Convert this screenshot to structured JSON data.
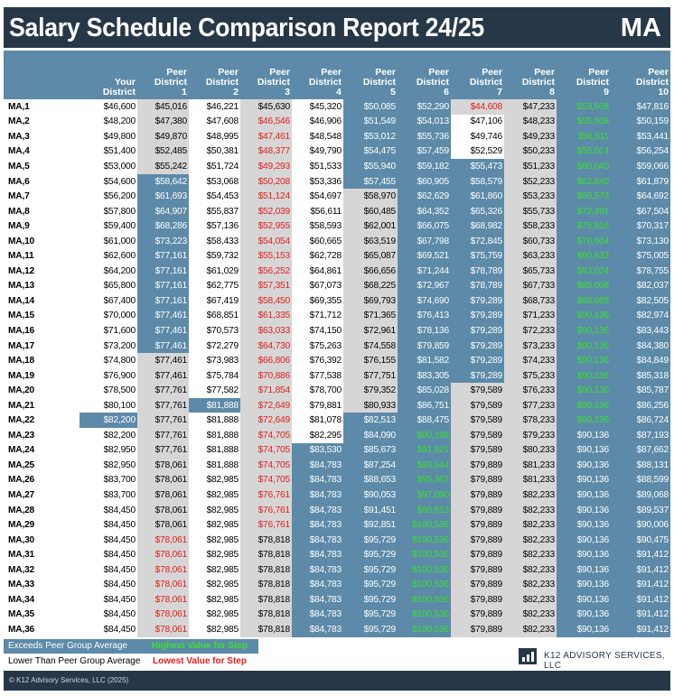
{
  "header": {
    "title": "Salary Schedule Comparison Report 24/25",
    "code": "MA"
  },
  "columns": [
    {
      "line1": "",
      "line2": "Your",
      "line3": "District"
    },
    {
      "line1": "Peer",
      "line2": "District",
      "line3": "1"
    },
    {
      "line1": "Peer",
      "line2": "District",
      "line3": "2"
    },
    {
      "line1": "Peer",
      "line2": "District",
      "line3": "3"
    },
    {
      "line1": "Peer",
      "line2": "District",
      "line3": "4"
    },
    {
      "line1": "Peer",
      "line2": "District",
      "line3": "5"
    },
    {
      "line1": "Peer",
      "line2": "District",
      "line3": "6"
    },
    {
      "line1": "Peer",
      "line2": "District",
      "line3": "7"
    },
    {
      "line1": "Peer",
      "line2": "District",
      "line3": "8"
    },
    {
      "line1": "Peer",
      "line2": "District",
      "line3": "9"
    },
    {
      "line1": "Peer",
      "line2": "District",
      "line3": "10"
    }
  ],
  "style_legend": {
    "p": "plain",
    "g": "gray",
    "b": "exceeds peer group average",
    "G": "highest value for step",
    "r": "lowest value for step"
  },
  "rows": [
    {
      "step": "MA,1",
      "values": [
        "$46,600",
        "$45,016",
        "$46,221",
        "$45,630",
        "$45,320",
        "$50,085",
        "$52,290",
        "$44,608",
        "$47,233",
        "$53,608",
        "$47,816"
      ],
      "styles": "pgpgpbbrgGb"
    },
    {
      "step": "MA,2",
      "values": [
        "$48,200",
        "$47,380",
        "$47,608",
        "$46,546",
        "$46,906",
        "$51,549",
        "$54,013",
        "$47,106",
        "$48,233",
        "$55,608",
        "$50,159"
      ],
      "styles": "pgprpbbpgGb"
    },
    {
      "step": "MA,3",
      "values": [
        "$49,800",
        "$49,870",
        "$48,995",
        "$47,461",
        "$48,548",
        "$53,012",
        "$55,736",
        "$49,746",
        "$49,233",
        "$56,811",
        "$53,441"
      ],
      "styles": "pgprpbbpgGb"
    },
    {
      "step": "MA,4",
      "values": [
        "$51,400",
        "$52,485",
        "$50,381",
        "$48,377",
        "$49,790",
        "$54,475",
        "$57,459",
        "$52,529",
        "$50,233",
        "$58,014",
        "$56,254"
      ],
      "styles": "pgprpbbpgGb"
    },
    {
      "step": "MA,5",
      "values": [
        "$53,000",
        "$55,242",
        "$51,724",
        "$49,293",
        "$51,533",
        "$55,940",
        "$59,182",
        "$55,473",
        "$51,233",
        "$60,040",
        "$59,066"
      ],
      "styles": "pgprpbbbgGb"
    },
    {
      "step": "MA,6",
      "values": [
        "$54,600",
        "$58,642",
        "$53,068",
        "$50,208",
        "$53,336",
        "$57,455",
        "$60,905",
        "$58,579",
        "$52,233",
        "$62,840",
        "$61,879"
      ],
      "styles": "pbprpbbbgGb"
    },
    {
      "step": "MA,7",
      "values": [
        "$56,200",
        "$61,693",
        "$54,453",
        "$51,124",
        "$54,697",
        "$58,970",
        "$62,629",
        "$61,860",
        "$53,233",
        "$65,573",
        "$64,692"
      ],
      "styles": "pbprpgbbgGb"
    },
    {
      "step": "MA,8",
      "values": [
        "$57,800",
        "$64,907",
        "$55,837",
        "$52,039",
        "$56,611",
        "$60,485",
        "$64,352",
        "$65,326",
        "$55,733",
        "$72,391",
        "$67,504"
      ],
      "styles": "pbprpgbbgGb"
    },
    {
      "step": "MA,9",
      "values": [
        "$59,400",
        "$68,286",
        "$57,136",
        "$52,955",
        "$58,593",
        "$62,001",
        "$66,075",
        "$68,982",
        "$58,233",
        "$75,916",
        "$70,317"
      ],
      "styles": "pbprpgbbgGb"
    },
    {
      "step": "MA,10",
      "values": [
        "$61,000",
        "$73,223",
        "$58,433",
        "$54,054",
        "$60,665",
        "$63,519",
        "$67,798",
        "$72,845",
        "$60,733",
        "$76,604",
        "$73,130"
      ],
      "styles": "pbprpgbbgGb"
    },
    {
      "step": "MA,11",
      "values": [
        "$62,600",
        "$77,161",
        "$59,732",
        "$55,153",
        "$62,728",
        "$65,087",
        "$69,521",
        "$75,759",
        "$63,233",
        "$80,633",
        "$75,005"
      ],
      "styles": "pbprpgbbgGb"
    },
    {
      "step": "MA,12",
      "values": [
        "$64,200",
        "$77,161",
        "$61,029",
        "$56,252",
        "$64,861",
        "$66,656",
        "$71,244",
        "$78,789",
        "$65,733",
        "$83,024",
        "$78,755"
      ],
      "styles": "pbprpgbbgGb"
    },
    {
      "step": "MA,13",
      "values": [
        "$65,800",
        "$77,161",
        "$62,775",
        "$57,351",
        "$67,073",
        "$68,225",
        "$72,967",
        "$78,789",
        "$67,733",
        "$85,008",
        "$82,037"
      ],
      "styles": "pbprpgbbgGb"
    },
    {
      "step": "MA,14",
      "values": [
        "$67,400",
        "$77,161",
        "$67,419",
        "$58,450",
        "$69,355",
        "$69,793",
        "$74,690",
        "$79,289",
        "$68,733",
        "$88,088",
        "$82,505"
      ],
      "styles": "pbprpgbbgGb"
    },
    {
      "step": "MA,15",
      "values": [
        "$70,000",
        "$77,461",
        "$68,851",
        "$61,335",
        "$71,712",
        "$71,365",
        "$76,413",
        "$79,289",
        "$71,233",
        "$90,136",
        "$82,974"
      ],
      "styles": "pbprpgbbgGb"
    },
    {
      "step": "MA,16",
      "values": [
        "$71,600",
        "$77,461",
        "$70,573",
        "$63,033",
        "$74,150",
        "$72,961",
        "$78,136",
        "$79,289",
        "$72,233",
        "$90,136",
        "$83,443"
      ],
      "styles": "pbprpgbbgGb"
    },
    {
      "step": "MA,17",
      "values": [
        "$73,200",
        "$77,461",
        "$72,279",
        "$64,730",
        "$75,263",
        "$74,558",
        "$79,859",
        "$79,289",
        "$73,233",
        "$90,136",
        "$84,380"
      ],
      "styles": "pbprpgbbgGb"
    },
    {
      "step": "MA,18",
      "values": [
        "$74,800",
        "$77,461",
        "$73,983",
        "$66,806",
        "$76,392",
        "$76,155",
        "$81,582",
        "$79,289",
        "$74,233",
        "$90,136",
        "$84,849"
      ],
      "styles": "pgprpgbbgGb"
    },
    {
      "step": "MA,19",
      "values": [
        "$76,900",
        "$77,461",
        "$75,784",
        "$70,886",
        "$77,538",
        "$77,751",
        "$83,305",
        "$79,289",
        "$75,233",
        "$90,136",
        "$85,318"
      ],
      "styles": "pgprpgbbgGb"
    },
    {
      "step": "MA,20",
      "values": [
        "$78,500",
        "$77,761",
        "$77,582",
        "$71,854",
        "$78,700",
        "$79,352",
        "$85,028",
        "$79,589",
        "$76,233",
        "$90,136",
        "$85,787"
      ],
      "styles": "pgprpgbggGb"
    },
    {
      "step": "MA,21",
      "values": [
        "$80,100",
        "$77,761",
        "$81,888",
        "$72,649",
        "$79,881",
        "$80,933",
        "$86,751",
        "$79,589",
        "$77,233",
        "$90,136",
        "$86,256"
      ],
      "styles": "pgbrpgbggGb"
    },
    {
      "step": "MA,22",
      "values": [
        "$82,200",
        "$77,761",
        "$81,888",
        "$72,649",
        "$81,078",
        "$82,513",
        "$88,475",
        "$79,589",
        "$78,233",
        "$90,136",
        "$86,724"
      ],
      "styles": "bgprpbbggGb"
    },
    {
      "step": "MA,23",
      "values": [
        "$82,200",
        "$77,761",
        "$81,888",
        "$74,705",
        "$82,295",
        "$84,090",
        "$90,198",
        "$79,589",
        "$79,233",
        "$90,136",
        "$87,193"
      ],
      "styles": "pgprpbGggbb"
    },
    {
      "step": "MA,24",
      "values": [
        "$82,950",
        "$77,761",
        "$81,888",
        "$74,705",
        "$83,530",
        "$85,673",
        "$91,921",
        "$79,589",
        "$80,233",
        "$90,136",
        "$87,662"
      ],
      "styles": "pgprbbGggbb"
    },
    {
      "step": "MA,25",
      "values": [
        "$82,950",
        "$78,061",
        "$81,888",
        "$74,705",
        "$84,783",
        "$87,254",
        "$93,644",
        "$79,889",
        "$81,233",
        "$90,136",
        "$88,131"
      ],
      "styles": "pgprbbGggbb"
    },
    {
      "step": "MA,26",
      "values": [
        "$83,700",
        "$78,061",
        "$82,985",
        "$74,705",
        "$84,783",
        "$88,653",
        "$95,367",
        "$79,889",
        "$81,233",
        "$90,136",
        "$88,599"
      ],
      "styles": "pgprbbGggbb"
    },
    {
      "step": "MA,27",
      "values": [
        "$83,700",
        "$78,061",
        "$82,985",
        "$76,761",
        "$84,783",
        "$90,053",
        "$97,090",
        "$79,889",
        "$82,233",
        "$90,136",
        "$89,068"
      ],
      "styles": "pgprbbGggbb"
    },
    {
      "step": "MA,28",
      "values": [
        "$84,450",
        "$78,061",
        "$82,985",
        "$76,761",
        "$84,783",
        "$91,451",
        "$98,813",
        "$79,889",
        "$82,233",
        "$90,136",
        "$89,537"
      ],
      "styles": "pgprbbGggbb"
    },
    {
      "step": "MA,29",
      "values": [
        "$84,450",
        "$78,061",
        "$82,985",
        "$76,761",
        "$84,783",
        "$92,851",
        "$100,536",
        "$79,889",
        "$82,233",
        "$90,136",
        "$90,006"
      ],
      "styles": "pgprbbGggbb"
    },
    {
      "step": "MA,30",
      "values": [
        "$84,450",
        "$78,061",
        "$82,985",
        "$78,818",
        "$84,783",
        "$95,729",
        "$100,536",
        "$79,889",
        "$82,233",
        "$90,136",
        "$90,475"
      ],
      "styles": "prpgbbGggbb"
    },
    {
      "step": "MA,31",
      "values": [
        "$84,450",
        "$78,061",
        "$82,985",
        "$78,818",
        "$84,783",
        "$95,729",
        "$100,536",
        "$79,889",
        "$82,233",
        "$90,136",
        "$91,412"
      ],
      "styles": "prpgbbGggbb"
    },
    {
      "step": "MA,32",
      "values": [
        "$84,450",
        "$78,061",
        "$82,985",
        "$78,818",
        "$84,783",
        "$95,729",
        "$100,536",
        "$79,889",
        "$82,233",
        "$90,136",
        "$91,412"
      ],
      "styles": "prpgbbGggbb"
    },
    {
      "step": "MA,33",
      "values": [
        "$84,450",
        "$78,061",
        "$82,985",
        "$78,818",
        "$84,783",
        "$95,729",
        "$100,536",
        "$79,889",
        "$82,233",
        "$90,136",
        "$91,412"
      ],
      "styles": "prpgbbGggbb"
    },
    {
      "step": "MA,34",
      "values": [
        "$84,450",
        "$78,061",
        "$82,985",
        "$78,818",
        "$84,783",
        "$95,729",
        "$100,536",
        "$79,889",
        "$82,233",
        "$90,136",
        "$91,412"
      ],
      "styles": "prpgbbGggbb"
    },
    {
      "step": "MA,35",
      "values": [
        "$84,450",
        "$78,061",
        "$82,985",
        "$78,818",
        "$84,783",
        "$95,729",
        "$100,536",
        "$79,889",
        "$82,233",
        "$90,136",
        "$91,412"
      ],
      "styles": "prpgbbGggbb"
    },
    {
      "step": "MA,36",
      "values": [
        "$84,450",
        "$78,061",
        "$82,985",
        "$78,818",
        "$84,783",
        "$95,729",
        "$100,536",
        "$79,889",
        "$82,233",
        "$90,136",
        "$91,412"
      ],
      "styles": "prpgbbGggbb"
    }
  ],
  "legend": {
    "exceeds_label": "Exceeds Peer Group Average",
    "highest_label": "Highest Value for Step",
    "lower_label": "Lower Than Peer Group Average",
    "lowest_label": "Lowest Value for Step"
  },
  "brand": {
    "name": "K12 ADVISORY SERVICES, LLC",
    "icon": "chart-bars-icon"
  },
  "footer": {
    "copyright": "© K12 Advisory Services, LLC (2025)"
  },
  "colors": {
    "header_bg": "#263748",
    "highlight_blue": "#5d8aa8",
    "gray": "#d6d6d6",
    "highest_green": "#39e032",
    "lowest_red": "#e0201b"
  }
}
